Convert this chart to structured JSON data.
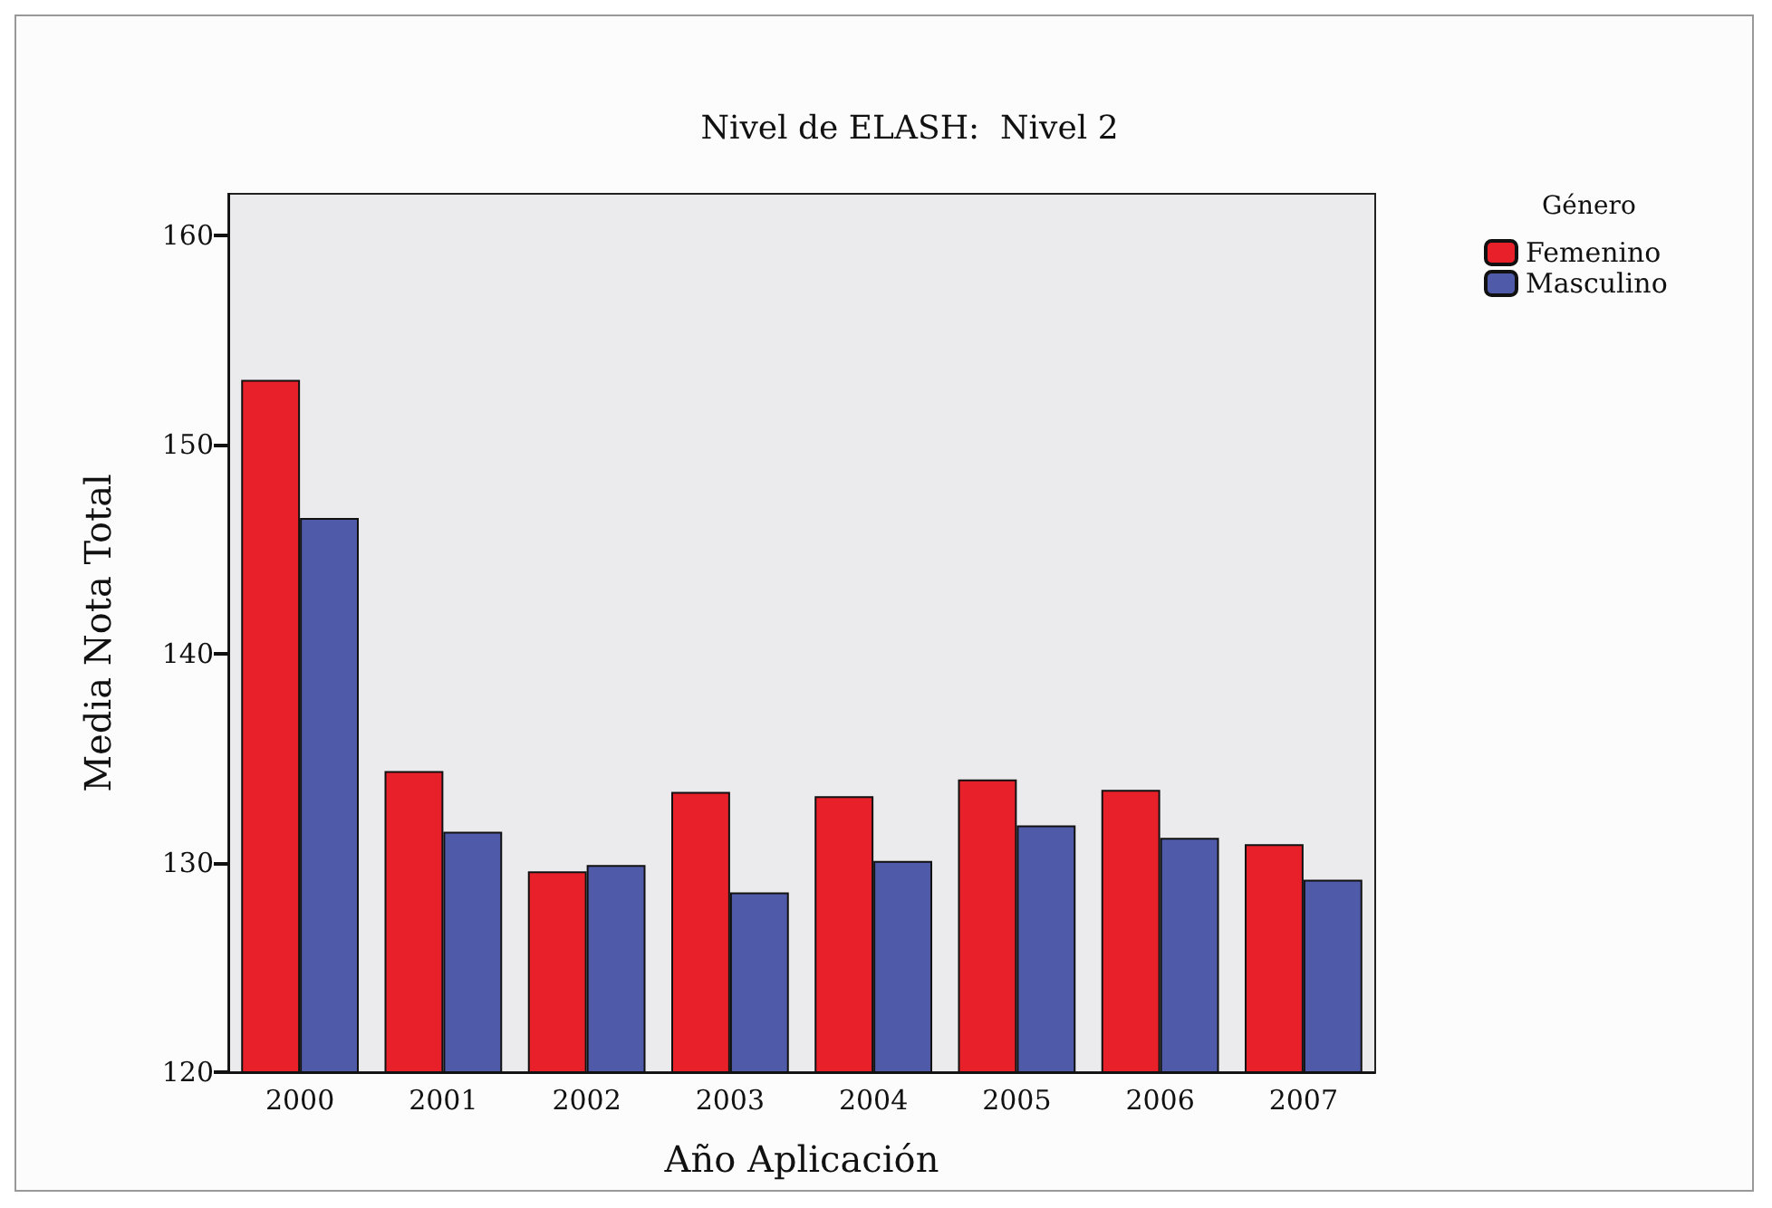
{
  "chart_data": {
    "type": "bar",
    "title": "Nivel de ELASH:  Nivel 2",
    "xlabel": "Año Aplicación",
    "ylabel": "Media Nota Total",
    "legend_title": "Género",
    "categories": [
      "2000",
      "2001",
      "2002",
      "2003",
      "2004",
      "2005",
      "2006",
      "2007"
    ],
    "series": [
      {
        "name": "Femenino",
        "color": "#e8202a",
        "values": [
          153.1,
          134.4,
          129.6,
          133.4,
          133.2,
          134.0,
          133.5,
          130.9
        ]
      },
      {
        "name": "Masculino",
        "color": "#4f5ba8",
        "values": [
          146.5,
          131.5,
          129.9,
          128.6,
          130.1,
          131.8,
          131.2,
          129.2
        ]
      }
    ],
    "ylim": [
      120,
      162
    ],
    "yticks": [
      120,
      130,
      140,
      150,
      160
    ],
    "grid": false,
    "legend": "top right"
  }
}
